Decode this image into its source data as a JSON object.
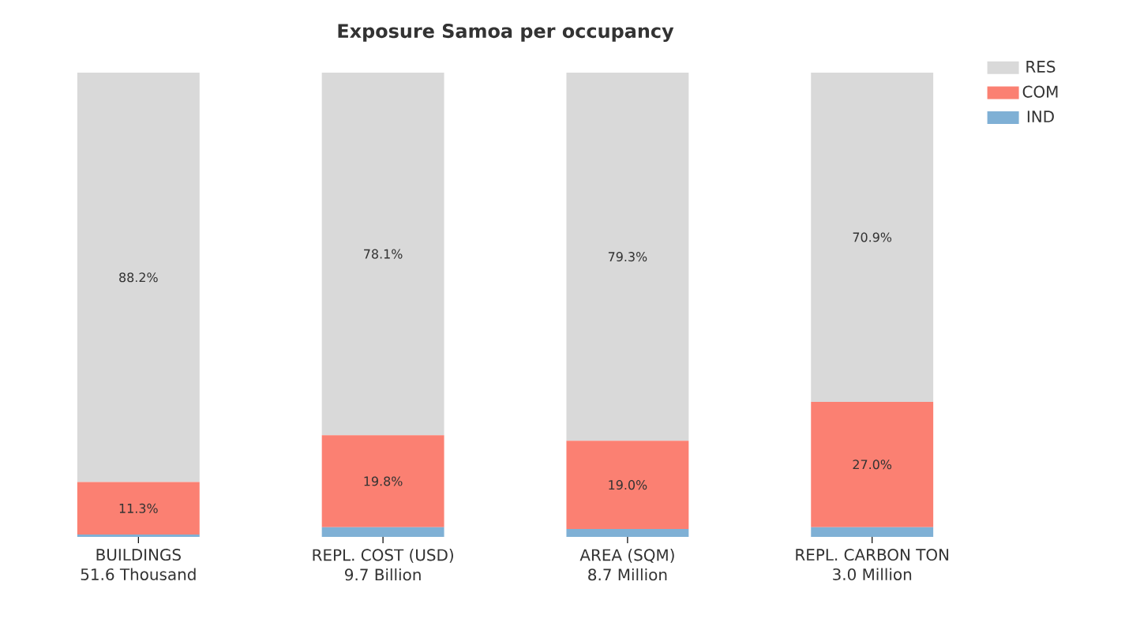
{
  "chart_data": {
    "type": "bar",
    "title": "Exposure Samoa per occupancy",
    "stacked": true,
    "legend": "top right",
    "categories": [
      "BUILDINGS\n51.6 Thousand",
      "REPL. COST (USD)\n9.7 Billion",
      "AREA (SQM)\n8.7 Million",
      "REPL. CARBON TON\n3.0 Million"
    ],
    "series": [
      {
        "name": "IND",
        "color": "#7fb0d5",
        "values": [
          0.5,
          2.1,
          1.7,
          2.1
        ],
        "value_labels": [
          null,
          null,
          null,
          null
        ]
      },
      {
        "name": "COM",
        "color": "#fb8072",
        "values": [
          11.3,
          19.8,
          19.0,
          27.0
        ],
        "value_labels": [
          "11.3%",
          "19.8%",
          "19.0%",
          "27.0%"
        ]
      },
      {
        "name": "RES",
        "color": "#d9d9d9",
        "values": [
          88.2,
          78.1,
          79.3,
          70.9
        ],
        "value_labels": [
          "88.2%",
          "78.1%",
          "79.3%",
          "70.9%"
        ]
      }
    ]
  }
}
